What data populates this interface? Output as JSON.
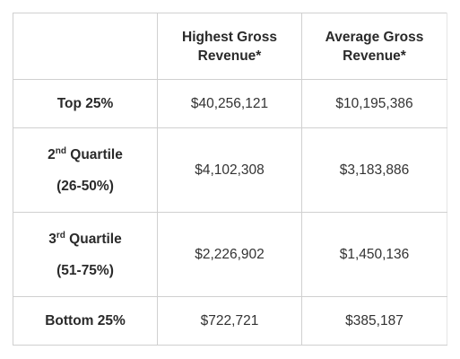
{
  "table": {
    "headers": [
      "",
      "Highest Gross Revenue*",
      "Average Gross Revenue*"
    ],
    "rows": [
      {
        "label_main": "Top 25%",
        "highest": "$40,256,121",
        "average": "$10,195,386"
      },
      {
        "label_num": "2",
        "label_sup": "nd",
        "label_word": " Quartile",
        "label_range": "(26-50%)",
        "highest": "$4,102,308",
        "average": "$3,183,886"
      },
      {
        "label_num": "3",
        "label_sup": "rd",
        "label_word": " Quartile",
        "label_range": "(51-75%)",
        "highest": "$2,226,902",
        "average": "$1,450,136"
      },
      {
        "label_main": "Bottom 25%",
        "highest": "$722,721",
        "average": "$385,187"
      }
    ]
  }
}
